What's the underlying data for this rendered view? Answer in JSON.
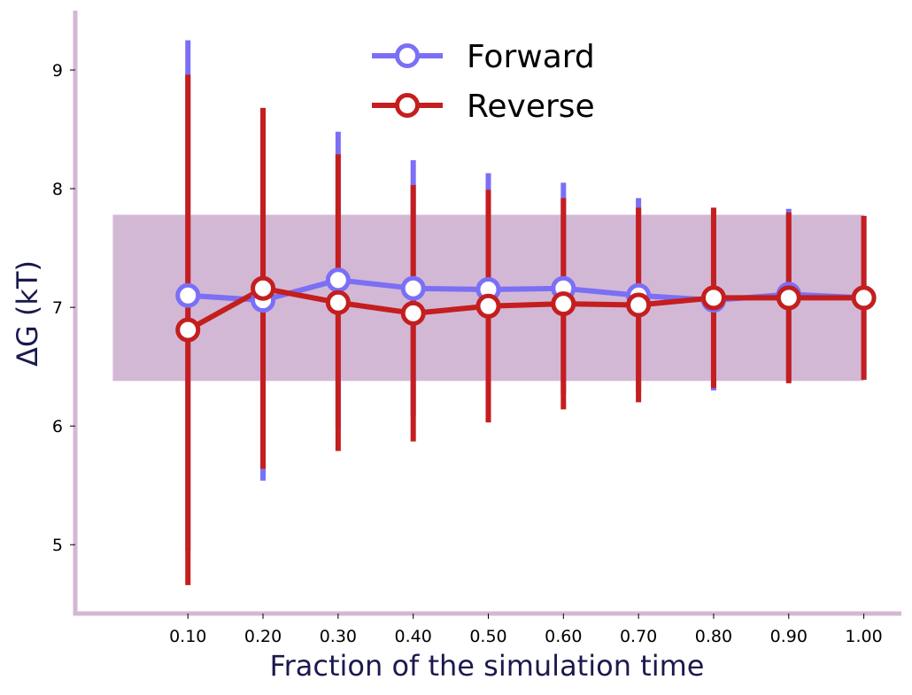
{
  "chart_data": {
    "type": "line",
    "xlabel": "Fraction of the simulation time",
    "ylabel": "ΔG (kT)",
    "xlim": [
      -0.05,
      1.05
    ],
    "ylim": [
      4.42,
      9.5
    ],
    "x": [
      0.1,
      0.2,
      0.3,
      0.4,
      0.5,
      0.6,
      0.7,
      0.8,
      0.9,
      1.0
    ],
    "xtick_labels": [
      "0.10",
      "0.20",
      "0.30",
      "0.40",
      "0.50",
      "0.60",
      "0.70",
      "0.80",
      "0.90",
      "1.00"
    ],
    "yticks": [
      5,
      6,
      7,
      8,
      9
    ],
    "band": {
      "x_start": 0.0,
      "x_end": 1.0,
      "y_low": 6.38,
      "y_high": 7.78,
      "color": "#d3b8d5"
    },
    "series": [
      {
        "name": "Forward",
        "color": "#7b6ff5",
        "values": [
          7.1,
          7.06,
          7.23,
          7.16,
          7.15,
          7.16,
          7.1,
          7.06,
          7.11,
          7.08
        ],
        "err": [
          2.15,
          1.52,
          1.25,
          1.08,
          0.98,
          0.89,
          0.82,
          0.76,
          0.72,
          0.69
        ]
      },
      {
        "name": "Reverse",
        "color": "#c41e1e",
        "values": [
          6.81,
          7.16,
          7.04,
          6.95,
          7.01,
          7.03,
          7.02,
          7.08,
          7.08,
          7.08
        ],
        "err": [
          2.15,
          1.52,
          1.25,
          1.08,
          0.98,
          0.89,
          0.82,
          0.76,
          0.72,
          0.69
        ]
      }
    ],
    "legend": "top-center",
    "grid": false,
    "spine_color": "#d3b8d5"
  }
}
